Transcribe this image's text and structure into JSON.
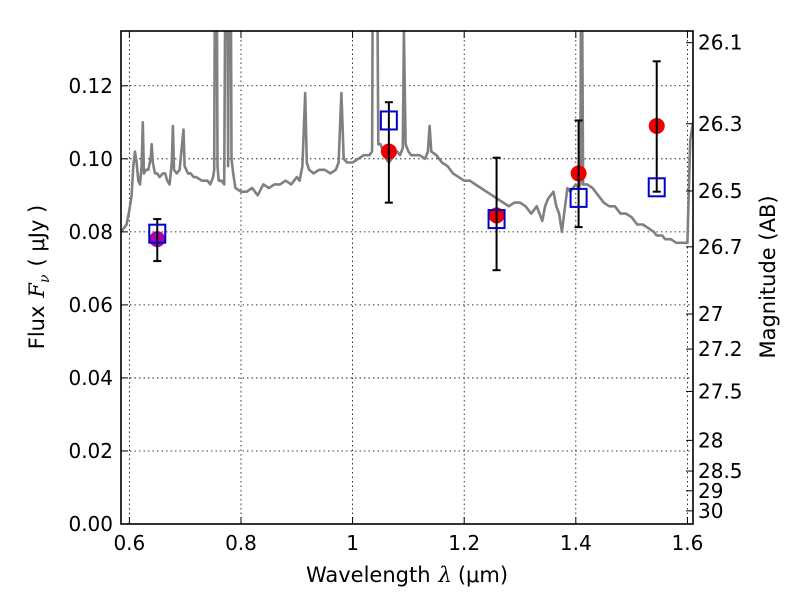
{
  "chart_data": {
    "type": "scatter",
    "xlabel_text": "Wavelength",
    "xlabel_symbol": "λ",
    "xlabel_unit": "(μm)",
    "ylabel_text": "Flux",
    "ylabel_symbol": "F",
    "ylabel_sub": "ν",
    "ylabel_unit": "( μJy )",
    "y2label": "Magnitude (AB)",
    "xlim": [
      0.585,
      1.61
    ],
    "ylim": [
      0.0,
      0.135
    ],
    "grid": true,
    "xticks": [
      {
        "value": 0.6,
        "label": "0.6"
      },
      {
        "value": 0.8,
        "label": "0.8"
      },
      {
        "value": 1.0,
        "label": "1"
      },
      {
        "value": 1.2,
        "label": "1.2"
      },
      {
        "value": 1.4,
        "label": "1.4"
      },
      {
        "value": 1.6,
        "label": "1.6"
      }
    ],
    "yticks": [
      {
        "value": 0.0,
        "label": "0.00"
      },
      {
        "value": 0.02,
        "label": "0.02"
      },
      {
        "value": 0.04,
        "label": "0.04"
      },
      {
        "value": 0.06,
        "label": "0.06"
      },
      {
        "value": 0.08,
        "label": "0.08"
      },
      {
        "value": 0.1,
        "label": "0.10"
      },
      {
        "value": 0.12,
        "label": "0.12"
      }
    ],
    "y2ticks": [
      {
        "label": "26.1",
        "flux": 0.1318
      },
      {
        "label": "26.3",
        "flux": 0.1096
      },
      {
        "label": "26.5",
        "flux": 0.0912
      },
      {
        "label": "26.7",
        "flux": 0.0759
      },
      {
        "label": "27",
        "flux": 0.0575
      },
      {
        "label": "27.2",
        "flux": 0.0479
      },
      {
        "label": "27.5",
        "flux": 0.0363
      },
      {
        "label": "28",
        "flux": 0.0229
      },
      {
        "label": "28.5",
        "flux": 0.0145
      },
      {
        "label": "29",
        "flux": 0.0091
      },
      {
        "label": "30",
        "flux": 0.0036
      }
    ],
    "series": [
      {
        "kind": "line",
        "color": "#808080",
        "points": [
          [
            0.585,
            0.08
          ],
          [
            0.595,
            0.082
          ],
          [
            0.6,
            0.086
          ],
          [
            0.604,
            0.09
          ],
          [
            0.607,
            0.098
          ],
          [
            0.61,
            0.102
          ],
          [
            0.613,
            0.099
          ],
          [
            0.616,
            0.094
          ],
          [
            0.619,
            0.093
          ],
          [
            0.622,
            0.098
          ],
          [
            0.624,
            0.11
          ],
          [
            0.626,
            0.096
          ],
          [
            0.63,
            0.097
          ],
          [
            0.634,
            0.097
          ],
          [
            0.638,
            0.1
          ],
          [
            0.64,
            0.104
          ],
          [
            0.642,
            0.099
          ],
          [
            0.646,
            0.096
          ],
          [
            0.65,
            0.096
          ],
          [
            0.654,
            0.095
          ],
          [
            0.66,
            0.096
          ],
          [
            0.664,
            0.096
          ],
          [
            0.668,
            0.094
          ],
          [
            0.672,
            0.093
          ],
          [
            0.676,
            0.099
          ],
          [
            0.678,
            0.109
          ],
          [
            0.68,
            0.097
          ],
          [
            0.685,
            0.096
          ],
          [
            0.69,
            0.097
          ],
          [
            0.695,
            0.105
          ],
          [
            0.697,
            0.108
          ],
          [
            0.699,
            0.098
          ],
          [
            0.705,
            0.096
          ],
          [
            0.71,
            0.096
          ],
          [
            0.715,
            0.095
          ],
          [
            0.72,
            0.095
          ],
          [
            0.73,
            0.094
          ],
          [
            0.74,
            0.094
          ],
          [
            0.745,
            0.093
          ],
          [
            0.75,
            0.095
          ],
          [
            0.752,
            0.097
          ],
          [
            0.754,
            0.18
          ],
          [
            0.756,
            0.18
          ],
          [
            0.758,
            0.098
          ],
          [
            0.76,
            0.094
          ],
          [
            0.765,
            0.094
          ],
          [
            0.77,
            0.093
          ],
          [
            0.773,
            0.18
          ],
          [
            0.775,
            0.18
          ],
          [
            0.777,
            0.098
          ],
          [
            0.779,
            0.18
          ],
          [
            0.781,
            0.18
          ],
          [
            0.783,
            0.1
          ],
          [
            0.786,
            0.096
          ],
          [
            0.79,
            0.092
          ],
          [
            0.8,
            0.091
          ],
          [
            0.81,
            0.091
          ],
          [
            0.82,
            0.092
          ],
          [
            0.83,
            0.09
          ],
          [
            0.84,
            0.093
          ],
          [
            0.85,
            0.092
          ],
          [
            0.86,
            0.093
          ],
          [
            0.87,
            0.093
          ],
          [
            0.88,
            0.094
          ],
          [
            0.89,
            0.093
          ],
          [
            0.9,
            0.095
          ],
          [
            0.905,
            0.094
          ],
          [
            0.91,
            0.098
          ],
          [
            0.915,
            0.118
          ],
          [
            0.918,
            0.099
          ],
          [
            0.922,
            0.097
          ],
          [
            0.93,
            0.096
          ],
          [
            0.94,
            0.097
          ],
          [
            0.95,
            0.097
          ],
          [
            0.96,
            0.096
          ],
          [
            0.97,
            0.097
          ],
          [
            0.975,
            0.099
          ],
          [
            0.98,
            0.118
          ],
          [
            0.984,
            0.1
          ],
          [
            0.99,
            0.099
          ],
          [
            1.0,
            0.099
          ],
          [
            1.01,
            0.1
          ],
          [
            1.02,
            0.101
          ],
          [
            1.03,
            0.101
          ],
          [
            1.035,
            0.102
          ],
          [
            1.037,
            0.18
          ],
          [
            1.04,
            0.18
          ],
          [
            1.043,
            0.18
          ],
          [
            1.046,
            0.104
          ],
          [
            1.05,
            0.104
          ],
          [
            1.055,
            0.102
          ],
          [
            1.06,
            0.1
          ],
          [
            1.065,
            0.099
          ],
          [
            1.07,
            0.1
          ],
          [
            1.075,
            0.101
          ],
          [
            1.08,
            0.102
          ],
          [
            1.085,
            0.101
          ],
          [
            1.09,
            0.103
          ],
          [
            1.092,
            0.135
          ],
          [
            1.095,
            0.104
          ],
          [
            1.1,
            0.102
          ],
          [
            1.105,
            0.101
          ],
          [
            1.11,
            0.101
          ],
          [
            1.12,
            0.101
          ],
          [
            1.13,
            0.1
          ],
          [
            1.135,
            0.102
          ],
          [
            1.138,
            0.109
          ],
          [
            1.141,
            0.102
          ],
          [
            1.15,
            0.101
          ],
          [
            1.16,
            0.099
          ],
          [
            1.17,
            0.098
          ],
          [
            1.18,
            0.096
          ],
          [
            1.19,
            0.095
          ],
          [
            1.2,
            0.094
          ],
          [
            1.21,
            0.094
          ],
          [
            1.22,
            0.093
          ],
          [
            1.23,
            0.092
          ],
          [
            1.24,
            0.091
          ],
          [
            1.25,
            0.09
          ],
          [
            1.26,
            0.089
          ],
          [
            1.27,
            0.088
          ],
          [
            1.28,
            0.087
          ],
          [
            1.29,
            0.088
          ],
          [
            1.3,
            0.088
          ],
          [
            1.31,
            0.087
          ],
          [
            1.32,
            0.085
          ],
          [
            1.33,
            0.087
          ],
          [
            1.34,
            0.083
          ],
          [
            1.345,
            0.087
          ],
          [
            1.35,
            0.089
          ],
          [
            1.355,
            0.09
          ],
          [
            1.36,
            0.091
          ],
          [
            1.365,
            0.087
          ],
          [
            1.37,
            0.085
          ],
          [
            1.375,
            0.08
          ],
          [
            1.38,
            0.086
          ],
          [
            1.385,
            0.092
          ],
          [
            1.39,
            0.091
          ],
          [
            1.395,
            0.092
          ],
          [
            1.4,
            0.093
          ],
          [
            1.405,
            0.092
          ],
          [
            1.408,
            0.093
          ],
          [
            1.41,
            0.18
          ],
          [
            1.413,
            0.093
          ],
          [
            1.416,
            0.093
          ],
          [
            1.42,
            0.093
          ],
          [
            1.43,
            0.092
          ],
          [
            1.44,
            0.09
          ],
          [
            1.45,
            0.088
          ],
          [
            1.46,
            0.087
          ],
          [
            1.47,
            0.087
          ],
          [
            1.48,
            0.085
          ],
          [
            1.49,
            0.085
          ],
          [
            1.5,
            0.084
          ],
          [
            1.51,
            0.082
          ],
          [
            1.52,
            0.082
          ],
          [
            1.53,
            0.081
          ],
          [
            1.54,
            0.08
          ],
          [
            1.545,
            0.079
          ],
          [
            1.55,
            0.079
          ],
          [
            1.555,
            0.079
          ],
          [
            1.56,
            0.078
          ],
          [
            1.57,
            0.078
          ],
          [
            1.58,
            0.077
          ],
          [
            1.59,
            0.077
          ],
          [
            1.6,
            0.077
          ],
          [
            1.605,
            0.105
          ],
          [
            1.61,
            0.11
          ]
        ]
      },
      {
        "kind": "points",
        "marker": "circle",
        "color": "#ee0000",
        "points": [
          {
            "x": 1.065,
            "y": 0.102
          },
          {
            "x": 1.258,
            "y": 0.0845
          },
          {
            "x": 1.405,
            "y": 0.096
          },
          {
            "x": 1.545,
            "y": 0.109
          }
        ]
      },
      {
        "kind": "points",
        "marker": "circle",
        "color": "#aa00aa",
        "points": [
          {
            "x": 0.65,
            "y": 0.078
          }
        ]
      },
      {
        "kind": "errorbars",
        "color": "#000000",
        "points": [
          {
            "x": 0.65,
            "lo": 0.072,
            "hi": 0.0835
          },
          {
            "x": 1.065,
            "lo": 0.088,
            "hi": 0.1155
          },
          {
            "x": 1.258,
            "lo": 0.0695,
            "hi": 0.1003
          },
          {
            "x": 1.405,
            "lo": 0.0813,
            "hi": 0.1105
          },
          {
            "x": 1.545,
            "lo": 0.091,
            "hi": 0.1267
          }
        ]
      },
      {
        "kind": "points",
        "marker": "square",
        "color": "#0000cc",
        "points": [
          {
            "x": 0.65,
            "y": 0.0795
          },
          {
            "x": 1.065,
            "y": 0.1105
          },
          {
            "x": 1.258,
            "y": 0.0835
          },
          {
            "x": 1.405,
            "y": 0.0893
          },
          {
            "x": 1.545,
            "y": 0.0922
          }
        ]
      }
    ]
  }
}
